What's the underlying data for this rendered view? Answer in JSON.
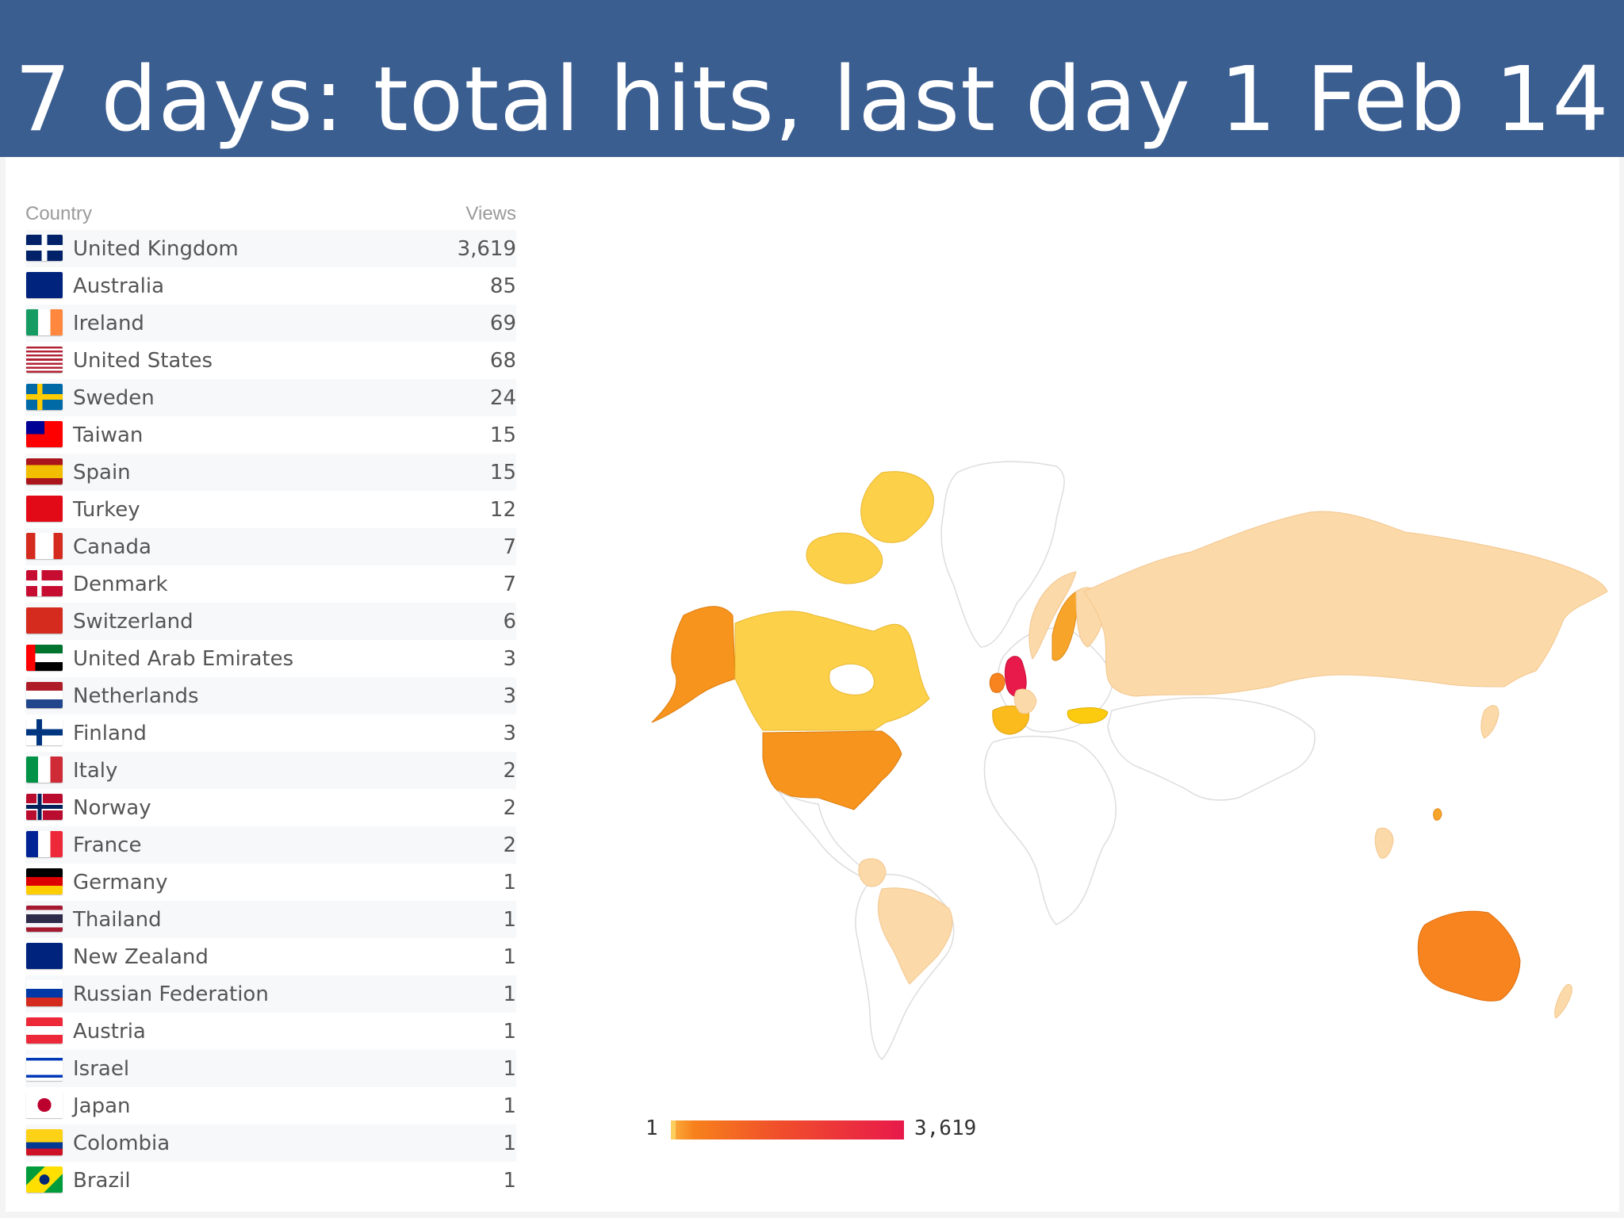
{
  "slide": {
    "title": "7 days: total hits, last day 1 Feb 14"
  },
  "table": {
    "col_country": "Country",
    "col_views": "Views",
    "rows": [
      {
        "country": "United Kingdom",
        "views": "3,619",
        "flag": "flag-uk-icon"
      },
      {
        "country": "Australia",
        "views": "85",
        "flag": "flag-australia-icon"
      },
      {
        "country": "Ireland",
        "views": "69",
        "flag": "flag-ireland-icon"
      },
      {
        "country": "United States",
        "views": "68",
        "flag": "flag-us-icon"
      },
      {
        "country": "Sweden",
        "views": "24",
        "flag": "flag-sweden-icon"
      },
      {
        "country": "Taiwan",
        "views": "15",
        "flag": "flag-taiwan-icon"
      },
      {
        "country": "Spain",
        "views": "15",
        "flag": "flag-spain-icon"
      },
      {
        "country": "Turkey",
        "views": "12",
        "flag": "flag-turkey-icon"
      },
      {
        "country": "Canada",
        "views": "7",
        "flag": "flag-canada-icon"
      },
      {
        "country": "Denmark",
        "views": "7",
        "flag": "flag-denmark-icon"
      },
      {
        "country": "Switzerland",
        "views": "6",
        "flag": "flag-switzerland-icon"
      },
      {
        "country": "United Arab Emirates",
        "views": "3",
        "flag": "flag-uae-icon"
      },
      {
        "country": "Netherlands",
        "views": "3",
        "flag": "flag-netherlands-icon"
      },
      {
        "country": "Finland",
        "views": "3",
        "flag": "flag-finland-icon"
      },
      {
        "country": "Italy",
        "views": "2",
        "flag": "flag-italy-icon"
      },
      {
        "country": "Norway",
        "views": "2",
        "flag": "flag-norway-icon"
      },
      {
        "country": "France",
        "views": "2",
        "flag": "flag-france-icon"
      },
      {
        "country": "Germany",
        "views": "1",
        "flag": "flag-germany-icon"
      },
      {
        "country": "Thailand",
        "views": "1",
        "flag": "flag-thailand-icon"
      },
      {
        "country": "New Zealand",
        "views": "1",
        "flag": "flag-new-zealand-icon"
      },
      {
        "country": "Russian Federation",
        "views": "1",
        "flag": "flag-russia-icon"
      },
      {
        "country": "Austria",
        "views": "1",
        "flag": "flag-austria-icon"
      },
      {
        "country": "Israel",
        "views": "1",
        "flag": "flag-israel-icon"
      },
      {
        "country": "Japan",
        "views": "1",
        "flag": "flag-japan-icon"
      },
      {
        "country": "Colombia",
        "views": "1",
        "flag": "flag-colombia-icon"
      },
      {
        "country": "Brazil",
        "views": "1",
        "flag": "flag-brazil-icon"
      }
    ]
  },
  "legend": {
    "min": "1",
    "max": "3,619"
  },
  "colors": {
    "title_bar": "#3b5e91",
    "scale_low": "#fcd9a8",
    "scale_mid_low": "#fdd04a",
    "scale_mid": "#f7941d",
    "scale_high": "#e8194b",
    "no_data": "#ffffff",
    "border": "#dddddd"
  }
}
